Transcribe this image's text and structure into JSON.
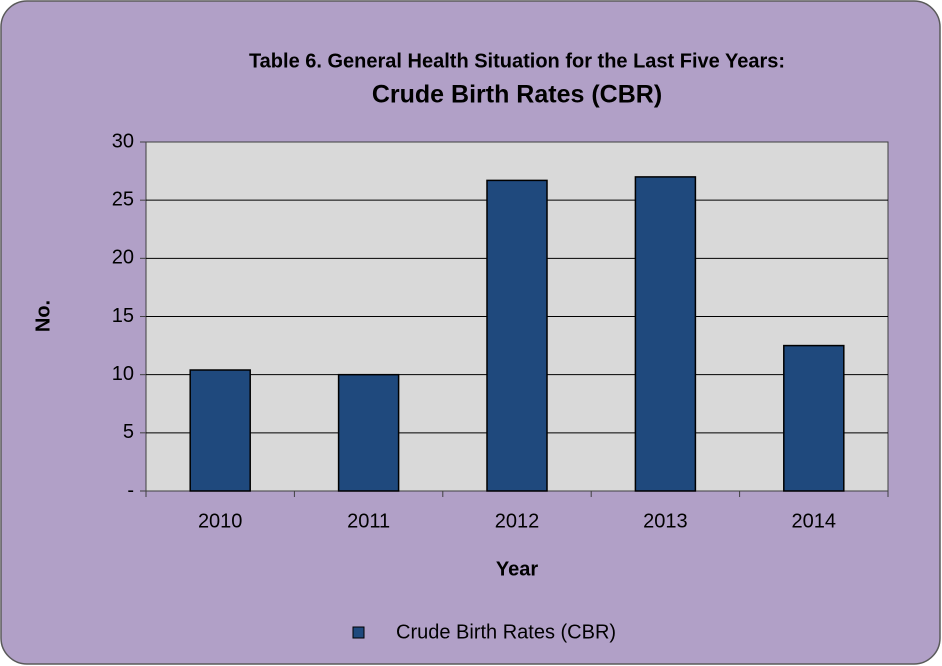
{
  "chart_data": {
    "type": "bar",
    "title": "Table 6. General Health Situation for the Last Five Years:",
    "subtitle": "Crude Birth Rates (CBR)",
    "x_label": "Year",
    "y_label": "No.",
    "categories": [
      "2010",
      "2011",
      "2012",
      "2013",
      "2014"
    ],
    "series": [
      {
        "name": "Crude Birth Rates (CBR)",
        "color": "#1f497d",
        "values": [
          10.4,
          10.0,
          26.7,
          27.0,
          12.5
        ]
      }
    ],
    "ylim": [
      0,
      30
    ],
    "yticks": [
      {
        "value": 0,
        "label": "-"
      },
      5,
      10,
      15,
      20,
      25,
      30
    ],
    "grid": true,
    "legend": "bottom"
  }
}
